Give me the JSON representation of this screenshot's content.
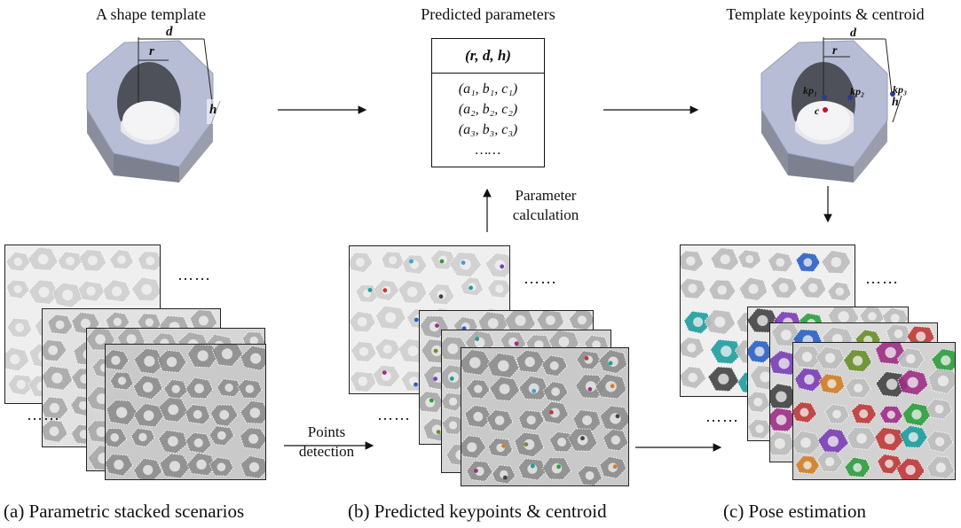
{
  "top": {
    "template_title": "A shape template",
    "params_title": "Predicted parameters",
    "keypoints_title": "Template keypoints & centroid"
  },
  "template_dims": {
    "r": "r",
    "d": "d",
    "h": "h"
  },
  "keypoint_dims": {
    "r": "r",
    "d": "d",
    "h": "h",
    "kp1": "kp₁",
    "kp2": "kp₂",
    "kp3": "kp₃",
    "c": "c"
  },
  "param_table": {
    "header": "(r, d, h)",
    "rows": [
      "(a₁, b₁, c₁)",
      "(a₂, b₂, c₂)",
      "(a₃, b₃, c₃)",
      "……"
    ]
  },
  "labels": {
    "param_calc": [
      "Parameter",
      "calculation"
    ],
    "points_detection": [
      "Points",
      "detection"
    ]
  },
  "ellipsis": "……",
  "captions": {
    "a": "(a) Parametric stacked scenarios",
    "b": "(b) Predicted keypoints & centroid",
    "c": "(c) Pose estimation"
  },
  "colors": {
    "nut_face": "#b8bdd6",
    "nut_side": "#8a8e9c",
    "keypoint": "#2a3c8a",
    "centroid": "#c8102e"
  }
}
